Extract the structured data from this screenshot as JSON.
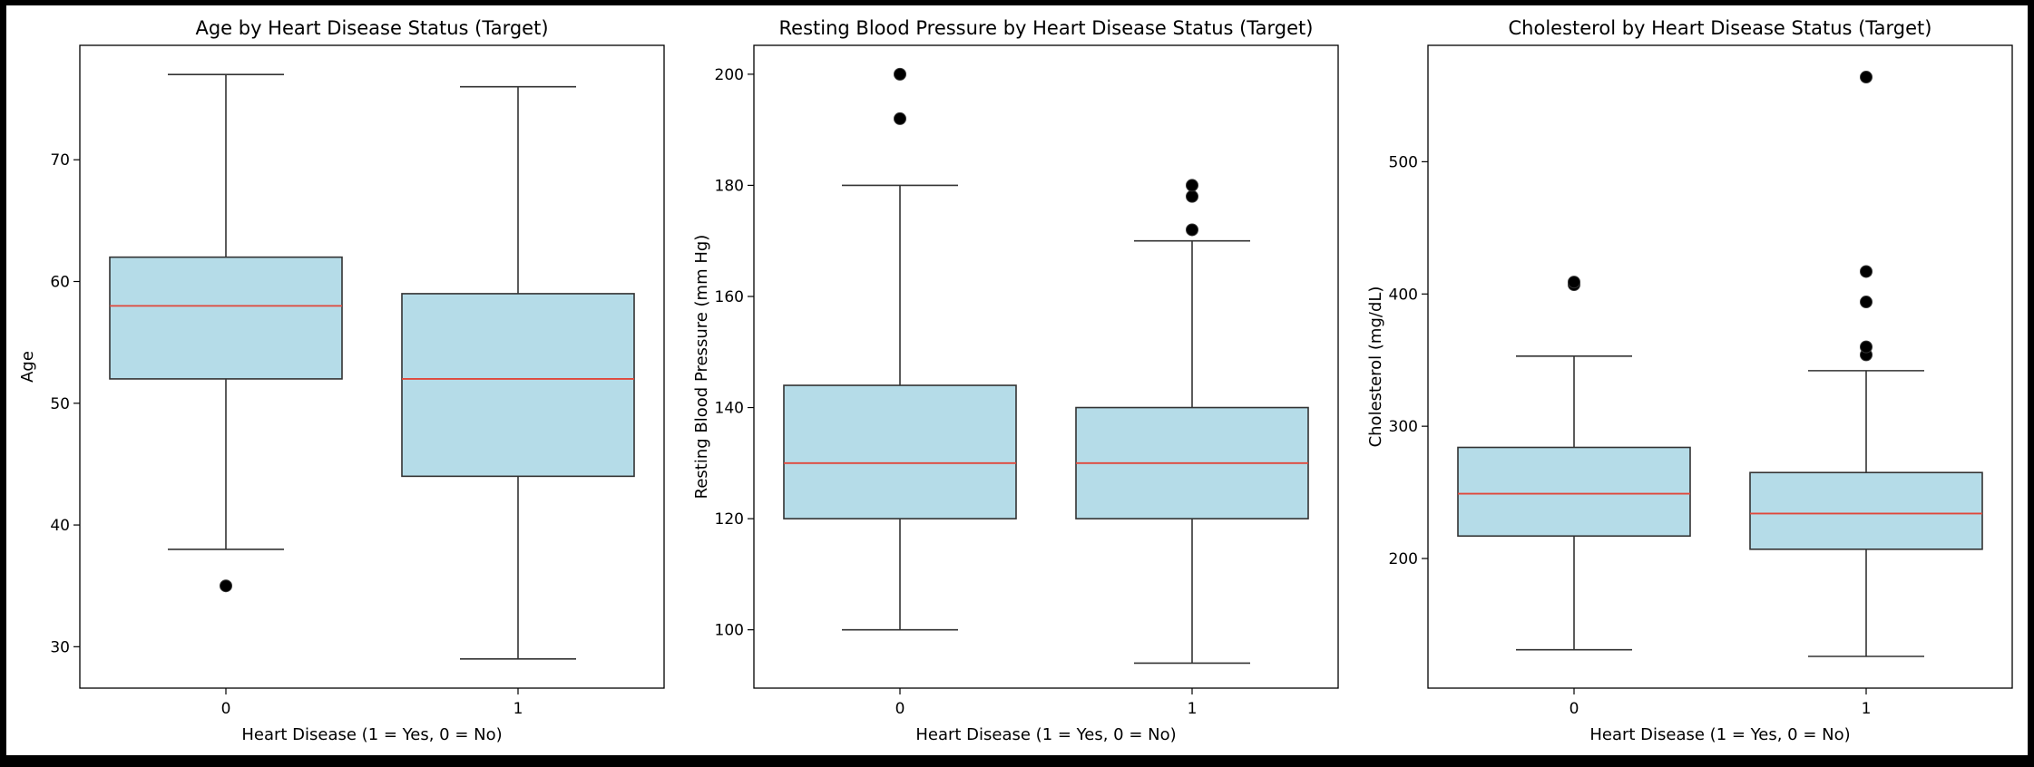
{
  "colors": {
    "box_fill": "#add8e6",
    "median": "#e0473a",
    "edge": "#333333",
    "outlier": "#000000"
  },
  "chart_data": [
    {
      "type": "boxplot",
      "title": "Age by Heart Disease Status (Target)",
      "xlabel": "Heart Disease (1 = Yes, 0 = No)",
      "ylabel": "Age",
      "categories": [
        "0",
        "1"
      ],
      "ylim": [
        26.6,
        79.4
      ],
      "yticks": [
        30,
        40,
        50,
        60,
        70
      ],
      "boxes": [
        {
          "whislo": 38,
          "q1": 52,
          "med": 58,
          "q3": 62,
          "whishi": 77,
          "fliers": [
            35
          ]
        },
        {
          "whislo": 29,
          "q1": 44,
          "med": 52,
          "q3": 59,
          "whishi": 76,
          "fliers": []
        }
      ],
      "grid": false
    },
    {
      "type": "boxplot",
      "title": "Resting Blood Pressure by Heart Disease Status (Target)",
      "xlabel": "Heart Disease (1 = Yes, 0 = No)",
      "ylabel": "Resting Blood Pressure (mm Hg)",
      "categories": [
        "0",
        "1"
      ],
      "ylim": [
        89.5,
        205.2
      ],
      "yticks": [
        100,
        120,
        140,
        160,
        180,
        200
      ],
      "boxes": [
        {
          "whislo": 100,
          "q1": 120,
          "med": 130,
          "q3": 144,
          "whishi": 180,
          "fliers": [
            192,
            200
          ]
        },
        {
          "whislo": 94,
          "q1": 120,
          "med": 130,
          "q3": 140,
          "whishi": 170,
          "fliers": [
            172,
            178,
            180
          ]
        }
      ],
      "grid": false
    },
    {
      "type": "boxplot",
      "title": "Cholesterol by Heart Disease Status (Target)",
      "xlabel": "Heart Disease (1 = Yes, 0 = No)",
      "ylabel": "Cholesterol (mg/dL)",
      "categories": [
        "0",
        "1"
      ],
      "ylim": [
        102,
        588
      ],
      "yticks": [
        200,
        300,
        400,
        500
      ],
      "boxes": [
        {
          "whislo": 131,
          "q1": 217,
          "med": 249,
          "q3": 284,
          "whishi": 353,
          "fliers": [
            407,
            409
          ]
        },
        {
          "whislo": 126,
          "q1": 207,
          "med": 234,
          "q3": 265,
          "whishi": 342,
          "fliers": [
            354,
            360,
            394,
            417,
            564
          ]
        }
      ],
      "grid": false
    }
  ]
}
